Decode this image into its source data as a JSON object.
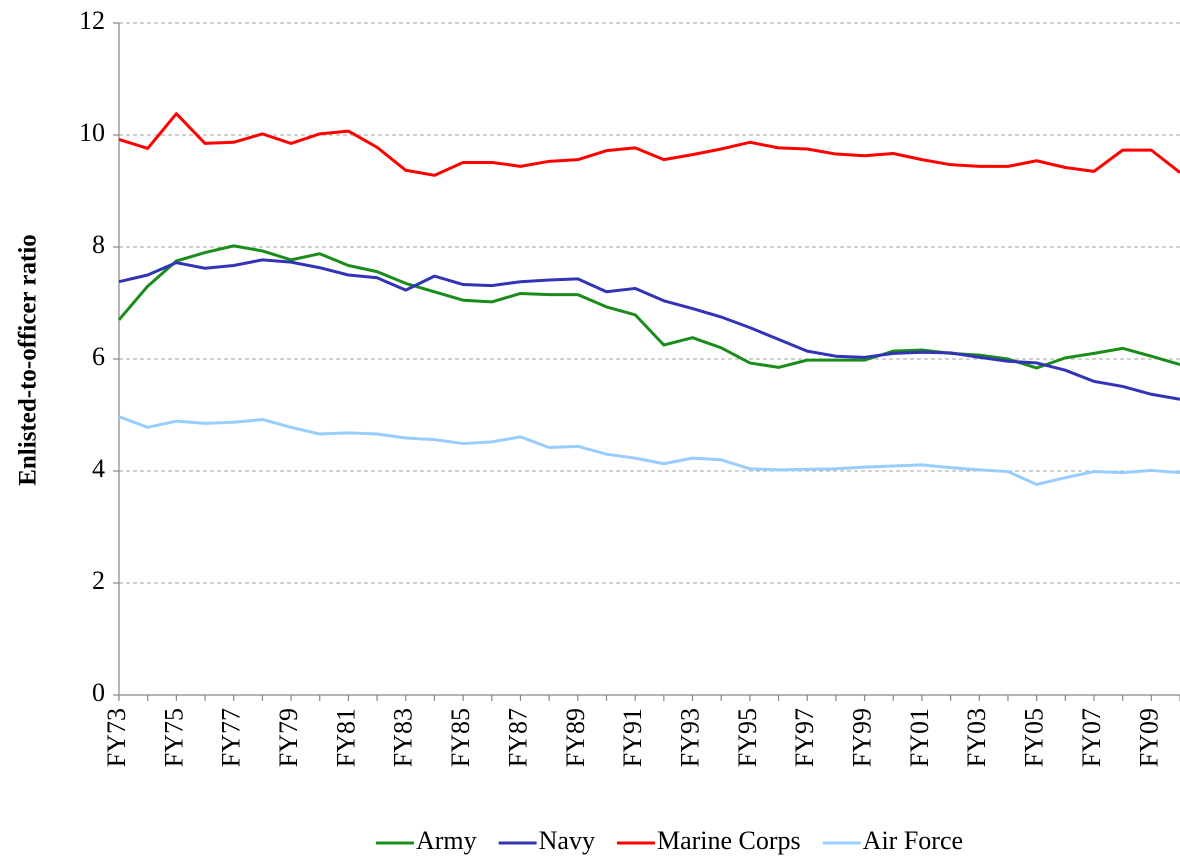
{
  "chart_data": {
    "type": "line",
    "y_label": "Enlisted-to-officer ratio",
    "categories": [
      "FY73",
      null,
      "FY75",
      null,
      "FY77",
      null,
      "FY79",
      null,
      "FY81",
      null,
      "FY83",
      null,
      "FY85",
      null,
      "FY87",
      null,
      "FY89",
      null,
      "FY91",
      null,
      "FY93",
      null,
      "FY95",
      null,
      "FY97",
      null,
      "FY99",
      null,
      "FY01",
      null,
      "FY03",
      null,
      "FY05",
      null,
      "FY07",
      null,
      "FY09",
      null
    ],
    "series": [
      {
        "name": "Army",
        "color": "#1a8c1a",
        "values": [
          6.7,
          7.3,
          7.75,
          7.9,
          8.02,
          7.93,
          7.77,
          7.88,
          7.67,
          7.56,
          7.35,
          7.2,
          7.05,
          7.02,
          7.17,
          7.15,
          7.15,
          6.93,
          6.79,
          6.25,
          6.38,
          6.2,
          5.93,
          5.85,
          5.98,
          5.98,
          5.98,
          6.14,
          6.16,
          6.1,
          6.07,
          6.0,
          5.84,
          6.02,
          6.1,
          6.19,
          6.05,
          5.9
        ]
      },
      {
        "name": "Navy",
        "color": "#3333b8",
        "values": [
          7.38,
          7.5,
          7.72,
          7.62,
          7.67,
          7.77,
          7.73,
          7.63,
          7.5,
          7.45,
          7.23,
          7.48,
          7.33,
          7.31,
          7.38,
          7.41,
          7.43,
          7.2,
          7.26,
          7.04,
          6.9,
          6.75,
          6.56,
          6.35,
          6.14,
          6.05,
          6.03,
          6.1,
          6.12,
          6.11,
          6.03,
          5.96,
          5.93,
          5.8,
          5.6,
          5.51,
          5.37,
          5.28
        ]
      },
      {
        "name": "Marine Corps",
        "color": "#ff0000",
        "values": [
          9.92,
          9.76,
          10.38,
          9.85,
          9.87,
          10.02,
          9.85,
          10.02,
          10.07,
          9.78,
          9.37,
          9.28,
          9.51,
          9.51,
          9.44,
          9.53,
          9.56,
          9.72,
          9.77,
          9.56,
          9.65,
          9.75,
          9.87,
          9.77,
          9.75,
          9.66,
          9.63,
          9.67,
          9.56,
          9.47,
          9.44,
          9.44,
          9.54,
          9.42,
          9.35,
          9.73,
          9.73,
          9.33
        ]
      },
      {
        "name": "Air Force",
        "color": "#99ccff",
        "values": [
          4.97,
          4.78,
          4.89,
          4.85,
          4.87,
          4.92,
          4.78,
          4.66,
          4.68,
          4.66,
          4.59,
          4.56,
          4.49,
          4.52,
          4.61,
          4.42,
          4.44,
          4.3,
          4.23,
          4.13,
          4.23,
          4.2,
          4.04,
          4.02,
          4.03,
          4.04,
          4.07,
          4.09,
          4.11,
          4.06,
          4.02,
          3.99,
          3.76,
          3.88,
          3.99,
          3.97,
          4.01,
          3.97
        ]
      }
    ],
    "ylim": [
      0,
      12
    ],
    "yticks": [
      0,
      2,
      4,
      6,
      8,
      10,
      12
    ],
    "grid": true,
    "legend": "bottom"
  }
}
